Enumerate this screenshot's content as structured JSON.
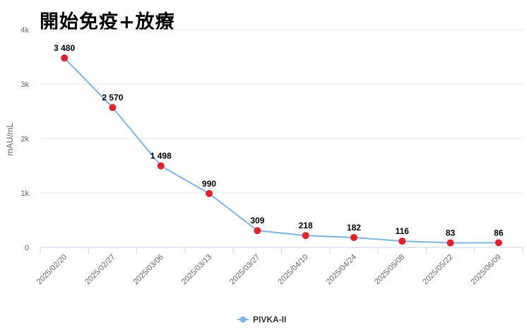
{
  "chart_data": {
    "type": "line",
    "title": "開始免疫+放療",
    "ylabel": "mAU/mL",
    "xlabel": "",
    "ylim": [
      0,
      4000
    ],
    "yticks": [
      {
        "value": 0,
        "label": "0"
      },
      {
        "value": 1000,
        "label": "1k"
      },
      {
        "value": 2000,
        "label": "2k"
      },
      {
        "value": 3000,
        "label": "3k"
      },
      {
        "value": 4000,
        "label": "4k"
      }
    ],
    "categories": [
      "2025/02/20",
      "2025/02/27",
      "2025/03/06",
      "2025/03/13",
      "2025/03/27",
      "2025/04/10",
      "2025/04/24",
      "2025/05/08",
      "2025/05/22",
      "2025/06/09"
    ],
    "series": [
      {
        "name": "PIVKA-II",
        "values": [
          3480,
          2570,
          1498,
          990,
          309,
          218,
          182,
          116,
          83,
          86
        ],
        "data_labels": [
          "3 480",
          "2 570",
          "1 498",
          "990",
          "309",
          "218",
          "182",
          "116",
          "83",
          "86"
        ],
        "line_color": "#7cb5ec",
        "marker_color": "#e0202a"
      }
    ],
    "grid": true,
    "legend": "bottom-center"
  }
}
